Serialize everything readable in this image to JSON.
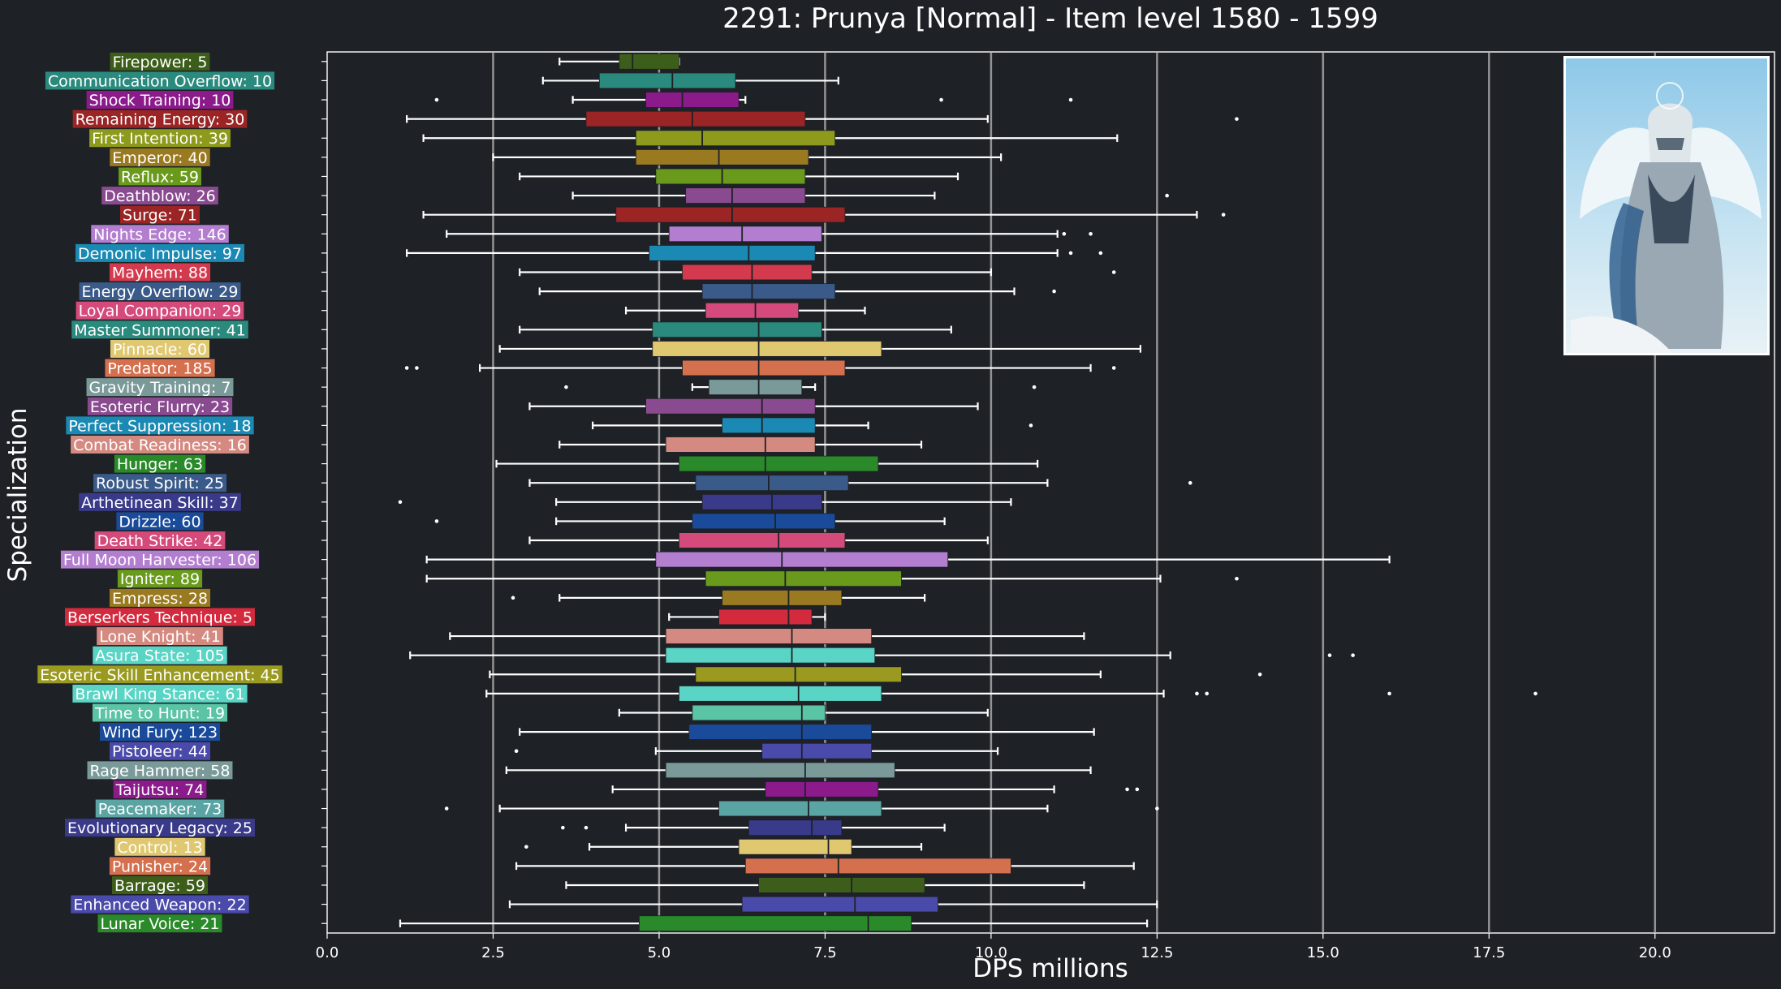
{
  "chart_data": {
    "type": "box",
    "title": "2291: Prunya [Normal] - Item level 1580 - 1599",
    "xlabel": "DPS millions",
    "ylabel": "Specialization",
    "xlim": [
      0,
      21.8
    ],
    "xticks": [
      "0.0",
      "2.5",
      "5.0",
      "7.5",
      "10.0",
      "12.5",
      "15.0",
      "17.5",
      "20.0"
    ],
    "grid": "vertical",
    "inset_image": {
      "position": "top-right",
      "depicts": "winged armored character portrait"
    },
    "categories": [
      {
        "label": "Firepower: 5",
        "color": "#3d5e1a",
        "whisker_low": 3.5,
        "q1": 4.4,
        "median": 4.6,
        "q3": 5.3,
        "whisker_high": 5.3,
        "outliers": []
      },
      {
        "label": "Communication Overflow: 10",
        "color": "#2a8a7e",
        "whisker_low": 3.25,
        "q1": 4.1,
        "median": 5.2,
        "q3": 6.15,
        "whisker_high": 7.7,
        "outliers": []
      },
      {
        "label": "Shock Training: 10",
        "color": "#8b1a8b",
        "whisker_low": 3.7,
        "q1": 4.8,
        "median": 5.35,
        "q3": 6.2,
        "whisker_high": 6.3,
        "outliers": [
          1.65,
          9.25,
          11.2
        ]
      },
      {
        "label": "Remaining Energy: 30",
        "color": "#9b2424",
        "whisker_low": 1.2,
        "q1": 3.9,
        "median": 5.5,
        "q3": 7.2,
        "whisker_high": 9.95,
        "outliers": [
          13.7
        ]
      },
      {
        "label": "First Intention: 39",
        "color": "#8d9a1c",
        "whisker_low": 1.45,
        "q1": 4.65,
        "median": 5.65,
        "q3": 7.65,
        "whisker_high": 11.9,
        "outliers": []
      },
      {
        "label": "Emperor: 40",
        "color": "#9a7a20",
        "whisker_low": 2.5,
        "q1": 4.65,
        "median": 5.9,
        "q3": 7.25,
        "whisker_high": 10.15,
        "outliers": []
      },
      {
        "label": "Reflux: 59",
        "color": "#6a9a1c",
        "whisker_low": 2.9,
        "q1": 4.95,
        "median": 5.95,
        "q3": 7.2,
        "whisker_high": 9.5,
        "outliers": []
      },
      {
        "label": "Deathblow: 26",
        "color": "#8a4a90",
        "whisker_low": 3.7,
        "q1": 5.4,
        "median": 6.1,
        "q3": 7.2,
        "whisker_high": 9.15,
        "outliers": [
          12.65
        ]
      },
      {
        "label": "Surge: 71",
        "color": "#9b2424",
        "whisker_low": 1.45,
        "q1": 4.35,
        "median": 6.1,
        "q3": 7.8,
        "whisker_high": 13.1,
        "outliers": [
          13.5
        ]
      },
      {
        "label": "Nights Edge: 146",
        "color": "#b47ed0",
        "whisker_low": 1.8,
        "q1": 5.15,
        "median": 6.25,
        "q3": 7.45,
        "whisker_high": 11.0,
        "outliers": [
          11.1,
          11.5
        ]
      },
      {
        "label": "Demonic Impulse: 97",
        "color": "#1a8ab4",
        "whisker_low": 1.2,
        "q1": 4.85,
        "median": 6.35,
        "q3": 7.35,
        "whisker_high": 11.0,
        "outliers": [
          11.2,
          11.65
        ]
      },
      {
        "label": "Mayhem: 88",
        "color": "#d43a4e",
        "whisker_low": 2.9,
        "q1": 5.35,
        "median": 6.4,
        "q3": 7.3,
        "whisker_high": 10.0,
        "outliers": [
          11.85
        ]
      },
      {
        "label": "Energy Overflow: 29",
        "color": "#3a5a8a",
        "whisker_low": 3.2,
        "q1": 5.65,
        "median": 6.4,
        "q3": 7.65,
        "whisker_high": 10.35,
        "outliers": [
          10.95
        ]
      },
      {
        "label": "Loyal Companion: 29",
        "color": "#d44a7a",
        "whisker_low": 4.5,
        "q1": 5.7,
        "median": 6.45,
        "q3": 7.1,
        "whisker_high": 8.1,
        "outliers": []
      },
      {
        "label": "Master Summoner: 41",
        "color": "#2a8a7e",
        "whisker_low": 2.9,
        "q1": 4.9,
        "median": 6.5,
        "q3": 7.45,
        "whisker_high": 9.4,
        "outliers": []
      },
      {
        "label": "Pinnacle: 60",
        "color": "#e0c870",
        "whisker_low": 2.6,
        "q1": 4.9,
        "median": 6.5,
        "q3": 8.35,
        "whisker_high": 12.25,
        "outliers": []
      },
      {
        "label": "Predator: 185",
        "color": "#d4704e",
        "whisker_low": 2.3,
        "q1": 5.35,
        "median": 6.5,
        "q3": 7.8,
        "whisker_high": 11.5,
        "outliers": [
          1.2,
          1.35,
          11.85
        ]
      },
      {
        "label": "Gravity Training: 7",
        "color": "#7a9a9a",
        "whisker_low": 5.5,
        "q1": 5.75,
        "median": 6.5,
        "q3": 7.15,
        "whisker_high": 7.35,
        "outliers": [
          3.6,
          10.65
        ]
      },
      {
        "label": "Esoteric Flurry: 23",
        "color": "#8a4a90",
        "whisker_low": 3.05,
        "q1": 4.8,
        "median": 6.55,
        "q3": 7.35,
        "whisker_high": 9.8,
        "outliers": []
      },
      {
        "label": "Perfect Suppression: 18",
        "color": "#1a8ab4",
        "whisker_low": 4.0,
        "q1": 5.95,
        "median": 6.55,
        "q3": 7.35,
        "whisker_high": 8.15,
        "outliers": [
          10.6
        ]
      },
      {
        "label": "Combat Readiness: 16",
        "color": "#d48a80",
        "whisker_low": 3.5,
        "q1": 5.1,
        "median": 6.6,
        "q3": 7.35,
        "whisker_high": 8.95,
        "outliers": []
      },
      {
        "label": "Hunger: 63",
        "color": "#2a8a2a",
        "whisker_low": 2.55,
        "q1": 5.3,
        "median": 6.6,
        "q3": 8.3,
        "whisker_high": 10.7,
        "outliers": []
      },
      {
        "label": "Robust Spirit: 25",
        "color": "#3a5a8a",
        "whisker_low": 3.05,
        "q1": 5.55,
        "median": 6.65,
        "q3": 7.85,
        "whisker_high": 10.85,
        "outliers": [
          13.0
        ]
      },
      {
        "label": "Arthetinean Skill: 37",
        "color": "#3a3a8a",
        "whisker_low": 3.45,
        "q1": 5.65,
        "median": 6.7,
        "q3": 7.45,
        "whisker_high": 10.3,
        "outliers": [
          1.1
        ]
      },
      {
        "label": "Drizzle: 60",
        "color": "#1a4a9a",
        "whisker_low": 3.45,
        "q1": 5.5,
        "median": 6.75,
        "q3": 7.65,
        "whisker_high": 9.3,
        "outliers": [
          1.65
        ]
      },
      {
        "label": "Death Strike: 42",
        "color": "#d44a7a",
        "whisker_low": 3.05,
        "q1": 5.3,
        "median": 6.8,
        "q3": 7.8,
        "whisker_high": 9.95,
        "outliers": []
      },
      {
        "label": "Full Moon Harvester: 106",
        "color": "#b47ed0",
        "whisker_low": 1.5,
        "q1": 4.95,
        "median": 6.85,
        "q3": 9.35,
        "whisker_high": 16.0,
        "outliers": []
      },
      {
        "label": "Igniter: 89",
        "color": "#6a9a1c",
        "whisker_low": 1.5,
        "q1": 5.7,
        "median": 6.9,
        "q3": 8.65,
        "whisker_high": 12.55,
        "outliers": [
          13.7
        ]
      },
      {
        "label": "Empress: 28",
        "color": "#9a7a20",
        "whisker_low": 3.5,
        "q1": 5.95,
        "median": 6.95,
        "q3": 7.75,
        "whisker_high": 9.0,
        "outliers": [
          2.8
        ]
      },
      {
        "label": "Berserkers Technique: 5",
        "color": "#d42a3e",
        "whisker_low": 5.15,
        "q1": 5.9,
        "median": 6.95,
        "q3": 7.3,
        "whisker_high": 7.5,
        "outliers": []
      },
      {
        "label": "Lone Knight: 41",
        "color": "#d48a80",
        "whisker_low": 1.85,
        "q1": 5.1,
        "median": 7.0,
        "q3": 8.2,
        "whisker_high": 11.4,
        "outliers": []
      },
      {
        "label": "Asura State: 105",
        "color": "#5ad4c4",
        "whisker_low": 1.25,
        "q1": 5.1,
        "median": 7.0,
        "q3": 8.25,
        "whisker_high": 12.7,
        "outliers": [
          15.1,
          15.45
        ]
      },
      {
        "label": "Esoteric Skill Enhancement: 45",
        "color": "#9a9a20",
        "whisker_low": 2.45,
        "q1": 5.55,
        "median": 7.05,
        "q3": 8.65,
        "whisker_high": 11.65,
        "outliers": [
          14.05
        ]
      },
      {
        "label": "Brawl King Stance: 61",
        "color": "#5ad4c4",
        "whisker_low": 2.4,
        "q1": 5.3,
        "median": 7.1,
        "q3": 8.35,
        "whisker_high": 12.6,
        "outliers": [
          13.1,
          13.25,
          16.0,
          18.2
        ]
      },
      {
        "label": "Time to Hunt: 19",
        "color": "#5ac4a4",
        "whisker_low": 4.4,
        "q1": 5.5,
        "median": 7.15,
        "q3": 7.5,
        "whisker_high": 9.95,
        "outliers": []
      },
      {
        "label": "Wind Fury: 123",
        "color": "#1a4a9a",
        "whisker_low": 2.9,
        "q1": 5.45,
        "median": 7.15,
        "q3": 8.2,
        "whisker_high": 11.55,
        "outliers": []
      },
      {
        "label": "Pistoleer: 44",
        "color": "#4a4aaa",
        "whisker_low": 4.95,
        "q1": 6.55,
        "median": 7.15,
        "q3": 8.2,
        "whisker_high": 10.1,
        "outliers": [
          2.85
        ]
      },
      {
        "label": "Rage Hammer: 58",
        "color": "#7a9a9a",
        "whisker_low": 2.7,
        "q1": 5.1,
        "median": 7.2,
        "q3": 8.55,
        "whisker_high": 11.5,
        "outliers": []
      },
      {
        "label": "Taijutsu: 74",
        "color": "#8b1a8b",
        "whisker_low": 4.3,
        "q1": 6.6,
        "median": 7.2,
        "q3": 8.3,
        "whisker_high": 10.95,
        "outliers": [
          12.05,
          12.2
        ]
      },
      {
        "label": "Peacemaker: 73",
        "color": "#5aa4a4",
        "whisker_low": 2.6,
        "q1": 5.9,
        "median": 7.25,
        "q3": 8.35,
        "whisker_high": 10.85,
        "outliers": [
          1.8,
          12.5
        ]
      },
      {
        "label": "Evolutionary Legacy: 25",
        "color": "#3a3a8a",
        "whisker_low": 4.5,
        "q1": 6.35,
        "median": 7.3,
        "q3": 7.75,
        "whisker_high": 9.3,
        "outliers": [
          3.55,
          3.9
        ]
      },
      {
        "label": "Control: 13",
        "color": "#e0c870",
        "whisker_low": 3.95,
        "q1": 6.2,
        "median": 7.55,
        "q3": 7.9,
        "whisker_high": 8.95,
        "outliers": [
          3.0
        ]
      },
      {
        "label": "Punisher: 24",
        "color": "#d4704e",
        "whisker_low": 2.85,
        "q1": 6.3,
        "median": 7.7,
        "q3": 10.3,
        "whisker_high": 12.15,
        "outliers": []
      },
      {
        "label": "Barrage: 59",
        "color": "#3d5e1a",
        "whisker_low": 3.6,
        "q1": 6.5,
        "median": 7.9,
        "q3": 9.0,
        "whisker_high": 11.4,
        "outliers": []
      },
      {
        "label": "Enhanced Weapon: 22",
        "color": "#4a4aaa",
        "whisker_low": 2.75,
        "q1": 6.25,
        "median": 7.95,
        "q3": 9.2,
        "whisker_high": 12.5,
        "outliers": []
      },
      {
        "label": "Lunar Voice: 21",
        "color": "#2a8a2a",
        "whisker_low": 1.1,
        "q1": 4.7,
        "median": 8.15,
        "q3": 8.8,
        "whisker_high": 12.35,
        "outliers": []
      }
    ]
  }
}
